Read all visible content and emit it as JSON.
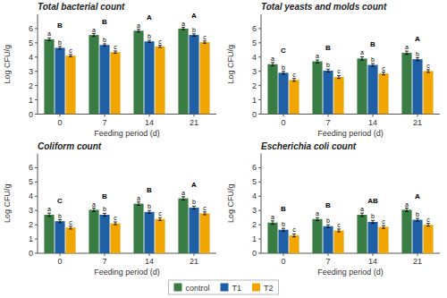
{
  "chart_data": [
    {
      "type": "bar",
      "title": "Total bacterial count",
      "xlabel": "Feeding period (d)",
      "ylabel": "Log CFU/g",
      "categories": [
        "0",
        "7",
        "14",
        "21"
      ],
      "series": [
        {
          "name": "control",
          "color": "#3a7d44",
          "values": [
            5.25,
            5.55,
            5.85,
            6.0
          ],
          "errors": [
            0.1,
            0.1,
            0.1,
            0.08
          ],
          "letters": [
            "a",
            "a",
            "a",
            "a"
          ]
        },
        {
          "name": "T1",
          "color": "#1f5fa6",
          "values": [
            4.65,
            4.85,
            5.1,
            5.55
          ],
          "errors": [
            0.1,
            0.08,
            0.08,
            0.08
          ],
          "letters": [
            "b",
            "b",
            "b",
            "b"
          ]
        },
        {
          "name": "T2",
          "color": "#f0a500",
          "values": [
            4.1,
            4.35,
            4.75,
            5.05
          ],
          "errors": [
            0.08,
            0.08,
            0.08,
            0.08
          ],
          "letters": [
            "c",
            "c",
            "c",
            "c"
          ]
        }
      ],
      "group_letters": [
        "B",
        "B",
        "A",
        "A"
      ],
      "ylim": [
        0.0,
        7.0
      ],
      "yticks": [
        0,
        1,
        2,
        3,
        4,
        5,
        6
      ],
      "legend": "bottom"
    },
    {
      "type": "bar",
      "title": "Total yeasts and molds count",
      "xlabel": "Feeding period (d)",
      "ylabel": "Log CFU/g",
      "categories": [
        "0",
        "7",
        "14",
        "21"
      ],
      "series": [
        {
          "name": "control",
          "color": "#3a7d44",
          "values": [
            3.5,
            3.7,
            3.9,
            4.3
          ],
          "errors": [
            0.12,
            0.1,
            0.12,
            0.12
          ],
          "letters": [
            "a",
            "a",
            "a",
            "a"
          ]
        },
        {
          "name": "T1",
          "color": "#1f5fa6",
          "values": [
            2.9,
            3.05,
            3.45,
            3.85
          ],
          "errors": [
            0.1,
            0.1,
            0.1,
            0.1
          ],
          "letters": [
            "b",
            "b",
            "b",
            "b"
          ]
        },
        {
          "name": "T2",
          "color": "#f0a500",
          "values": [
            2.4,
            2.6,
            2.85,
            3.02
          ],
          "errors": [
            0.1,
            0.1,
            0.1,
            0.1
          ],
          "letters": [
            "c",
            "c",
            "c",
            "c"
          ]
        }
      ],
      "group_letters": [
        "C",
        "B",
        "B",
        "A"
      ],
      "ylim": [
        0.0,
        7.0
      ],
      "yticks": [
        0,
        1,
        2,
        3,
        4,
        5,
        6
      ]
    },
    {
      "type": "bar",
      "title": "Coliform count",
      "xlabel": "Feeding period (d)",
      "ylabel": "Log CFU/g",
      "categories": [
        "0",
        "7",
        "14",
        "21"
      ],
      "series": [
        {
          "name": "control",
          "color": "#3a7d44",
          "values": [
            2.7,
            3.05,
            3.48,
            3.85
          ],
          "errors": [
            0.12,
            0.12,
            0.12,
            0.12
          ],
          "letters": [
            "a",
            "a",
            "a",
            "a"
          ]
        },
        {
          "name": "T1",
          "color": "#1f5fa6",
          "values": [
            2.25,
            2.7,
            2.9,
            3.2
          ],
          "errors": [
            0.1,
            0.1,
            0.1,
            0.1
          ],
          "letters": [
            "b",
            "b",
            "b",
            "b"
          ]
        },
        {
          "name": "T2",
          "color": "#f0a500",
          "values": [
            1.8,
            2.1,
            2.4,
            2.8
          ],
          "errors": [
            0.1,
            0.1,
            0.1,
            0.1
          ],
          "letters": [
            "c",
            "c",
            "c",
            "c"
          ]
        }
      ],
      "group_letters": [
        "C",
        "B",
        "B",
        "A"
      ],
      "ylim": [
        0.0,
        7.0
      ],
      "yticks": [
        0,
        1,
        2,
        3,
        4,
        5,
        6
      ]
    },
    {
      "type": "bar",
      "title": "Escherichia coli count",
      "xlabel": "Feeding period (d)",
      "ylabel": "Log CFU/g",
      "categories": [
        "0",
        "7",
        "14",
        "21"
      ],
      "series": [
        {
          "name": "control",
          "color": "#3a7d44",
          "values": [
            2.15,
            2.4,
            2.7,
            3.05
          ],
          "errors": [
            0.12,
            0.1,
            0.12,
            0.12
          ],
          "letters": [
            "a",
            "a",
            "a",
            "a"
          ]
        },
        {
          "name": "T1",
          "color": "#1f5fa6",
          "values": [
            1.65,
            1.9,
            2.2,
            2.35
          ],
          "errors": [
            0.1,
            0.1,
            0.1,
            0.1
          ],
          "letters": [
            "b",
            "b",
            "b",
            "b"
          ]
        },
        {
          "name": "T2",
          "color": "#f0a500",
          "values": [
            1.25,
            1.6,
            1.85,
            2.0
          ],
          "errors": [
            0.1,
            0.1,
            0.1,
            0.1
          ],
          "letters": [
            "c",
            "c",
            "c",
            "c"
          ]
        }
      ],
      "group_letters": [
        "B",
        "B",
        "AB",
        "A"
      ],
      "ylim": [
        0.0,
        7.0
      ],
      "yticks": [
        0,
        1,
        2,
        3,
        4,
        5,
        6
      ]
    }
  ]
}
